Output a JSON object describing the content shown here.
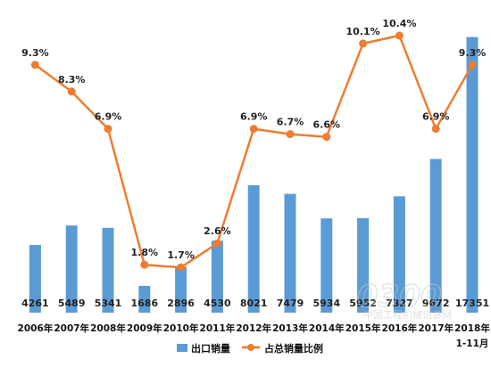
{
  "chart_data": {
    "type": "bar",
    "categories": [
      "2006年",
      "2007年",
      "2008年",
      "2009年",
      "2010年",
      "2011年",
      "2012年",
      "2013年",
      "2014年",
      "2015年",
      "2016年",
      "2017年",
      "2018年"
    ],
    "category_sub": {
      "12": "1-11月"
    },
    "series": [
      {
        "name": "出口销量",
        "type": "bar",
        "color": "#5b9bd5",
        "values": [
          4261,
          5489,
          5341,
          1686,
          2896,
          4530,
          8021,
          7479,
          5934,
          5952,
          7327,
          9672,
          17351
        ],
        "labels": [
          "4261",
          "5489",
          "5341",
          "1686",
          "2896",
          "4530",
          "8021",
          "7479",
          "5934",
          "5952",
          "7327",
          "9672",
          "17351"
        ]
      },
      {
        "name": "占总销量比例",
        "type": "line",
        "color": "#ed7d31",
        "values": [
          9.3,
          8.3,
          6.9,
          1.8,
          1.7,
          2.6,
          6.9,
          6.7,
          6.6,
          10.1,
          10.4,
          6.9,
          9.3
        ],
        "labels": [
          "9.3%",
          "8.3%",
          "6.9%",
          "1.8%",
          "1.7%",
          "2.6%",
          "6.9%",
          "6.7%",
          "6.6%",
          "10.1%",
          "10.4%",
          "6.9%",
          "9.3%"
        ]
      }
    ],
    "bar_ylim": [
      0,
      18000
    ],
    "line_ylim": [
      0,
      11
    ],
    "grid": false,
    "legend": "bottom-center"
  },
  "watermark": {
    "number": "0300",
    "text": "中国工程机械信息网"
  }
}
